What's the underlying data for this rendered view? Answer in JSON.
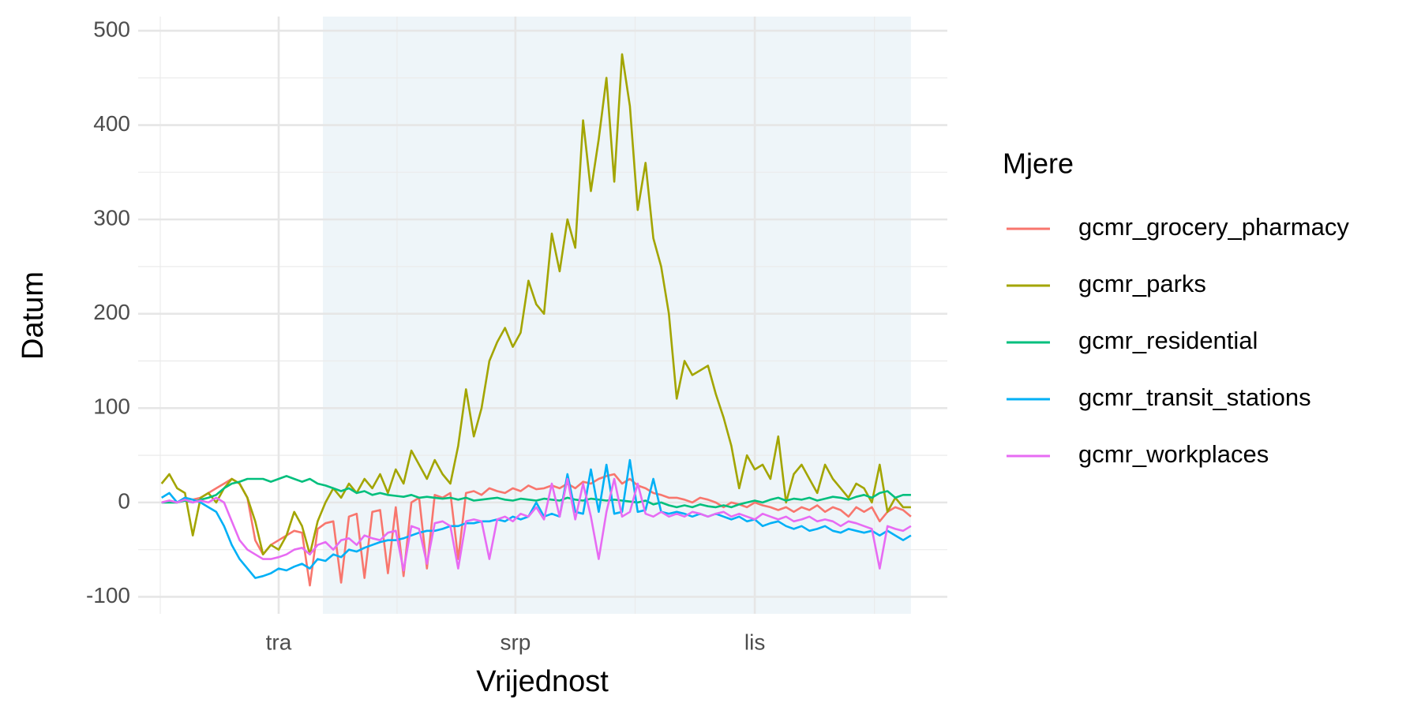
{
  "chart_data": {
    "type": "line",
    "x_label": "Vrijednost",
    "y_label": "Datum",
    "legend_title": "Mjere",
    "legend_position": "right",
    "grid": true,
    "shaded_range": [
      17,
      243
    ],
    "x": [
      -45,
      -42,
      -39,
      -36,
      -33,
      -30,
      -27,
      -24,
      -21,
      -18,
      -15,
      -12,
      -9,
      -6,
      -3,
      0,
      3,
      6,
      9,
      12,
      15,
      18,
      21,
      24,
      27,
      30,
      33,
      36,
      39,
      42,
      45,
      48,
      51,
      54,
      57,
      60,
      63,
      66,
      69,
      72,
      75,
      78,
      81,
      84,
      87,
      90,
      93,
      96,
      99,
      102,
      105,
      108,
      111,
      114,
      117,
      120,
      123,
      126,
      129,
      132,
      135,
      138,
      141,
      144,
      147,
      150,
      153,
      156,
      159,
      162,
      165,
      168,
      171,
      174,
      177,
      180,
      183,
      186,
      189,
      192,
      195,
      198,
      201,
      204,
      207,
      210,
      213,
      216,
      219,
      222,
      225,
      228,
      231,
      234,
      237,
      240,
      243
    ],
    "xlim": [
      -54,
      257
    ],
    "xticks": [
      {
        "value": 0,
        "label": "tra"
      },
      {
        "value": 91,
        "label": "srp"
      },
      {
        "value": 183,
        "label": "lis"
      }
    ],
    "ylim": [
      -118,
      515
    ],
    "yticks": [
      -100,
      0,
      100,
      200,
      300,
      400,
      500
    ],
    "series": [
      {
        "name": "gcmr_grocery_pharmacy",
        "color": "#F8766D",
        "values": [
          0,
          2,
          0,
          5,
          3,
          5,
          10,
          15,
          20,
          25,
          20,
          5,
          -40,
          -55,
          -45,
          -40,
          -35,
          -30,
          -32,
          -88,
          -28,
          -22,
          -20,
          -85,
          -15,
          -12,
          -80,
          -10,
          -8,
          -75,
          -5,
          -78,
          0,
          5,
          -70,
          8,
          5,
          10,
          -60,
          10,
          12,
          8,
          15,
          12,
          10,
          15,
          12,
          18,
          14,
          15,
          18,
          15,
          20,
          15,
          22,
          20,
          25,
          28,
          30,
          20,
          25,
          18,
          15,
          10,
          8,
          5,
          5,
          3,
          0,
          5,
          3,
          0,
          -5,
          0,
          -2,
          -5,
          0,
          -3,
          -5,
          -8,
          -5,
          -10,
          -5,
          -8,
          -3,
          -10,
          -5,
          -8,
          -15,
          -5,
          -10,
          -5,
          -20,
          -10,
          -5,
          -8,
          -15
        ]
      },
      {
        "name": "gcmr_parks",
        "color": "#A3A500",
        "values": [
          20,
          30,
          15,
          10,
          -35,
          5,
          10,
          0,
          15,
          25,
          20,
          5,
          -20,
          -55,
          -45,
          -50,
          -35,
          -10,
          -25,
          -55,
          -20,
          0,
          15,
          5,
          20,
          10,
          25,
          15,
          30,
          10,
          35,
          20,
          55,
          40,
          25,
          45,
          30,
          20,
          60,
          120,
          70,
          100,
          150,
          170,
          185,
          165,
          180,
          235,
          210,
          200,
          285,
          245,
          300,
          270,
          405,
          330,
          385,
          450,
          340,
          475,
          420,
          310,
          360,
          280,
          250,
          200,
          110,
          150,
          135,
          140,
          145,
          115,
          90,
          60,
          15,
          50,
          35,
          40,
          25,
          70,
          0,
          30,
          40,
          25,
          10,
          40,
          25,
          15,
          5,
          20,
          15,
          0,
          40,
          -10,
          5,
          -5,
          -5
        ]
      },
      {
        "name": "gcmr_residential",
        "color": "#00BF7D",
        "values": [
          0,
          0,
          0,
          2,
          0,
          3,
          5,
          8,
          15,
          20,
          22,
          25,
          25,
          25,
          22,
          25,
          28,
          25,
          22,
          25,
          20,
          18,
          15,
          12,
          15,
          10,
          12,
          8,
          10,
          8,
          7,
          6,
          8,
          5,
          6,
          5,
          4,
          5,
          3,
          5,
          2,
          3,
          4,
          5,
          3,
          2,
          4,
          3,
          2,
          4,
          3,
          2,
          5,
          3,
          2,
          4,
          3,
          2,
          3,
          2,
          1,
          0,
          2,
          -2,
          0,
          -3,
          -5,
          -3,
          -5,
          -2,
          -4,
          -5,
          -3,
          -5,
          -2,
          0,
          2,
          0,
          3,
          5,
          2,
          4,
          3,
          5,
          2,
          4,
          6,
          5,
          3,
          6,
          8,
          5,
          10,
          12,
          5,
          8,
          8
        ]
      },
      {
        "name": "gcmr_transit_stations",
        "color": "#00B0F6",
        "values": [
          5,
          10,
          0,
          5,
          3,
          0,
          -5,
          -10,
          -25,
          -45,
          -60,
          -70,
          -80,
          -78,
          -75,
          -70,
          -72,
          -68,
          -65,
          -70,
          -60,
          -62,
          -55,
          -58,
          -50,
          -52,
          -48,
          -45,
          -42,
          -40,
          -40,
          -38,
          -35,
          -32,
          -30,
          -30,
          -28,
          -25,
          -25,
          -22,
          -22,
          -20,
          -20,
          -18,
          -20,
          -15,
          -18,
          -15,
          0,
          -15,
          -12,
          -15,
          30,
          -10,
          -12,
          35,
          -10,
          40,
          -12,
          -10,
          45,
          -10,
          -8,
          25,
          -10,
          -12,
          -10,
          -12,
          -15,
          -12,
          -15,
          -12,
          -15,
          -18,
          -15,
          -20,
          -18,
          -25,
          -22,
          -20,
          -25,
          -28,
          -25,
          -30,
          -28,
          -25,
          -30,
          -32,
          -28,
          -30,
          -32,
          -30,
          -35,
          -30,
          -35,
          -40,
          -35
        ]
      },
      {
        "name": "gcmr_workplaces",
        "color": "#E76BF3",
        "values": [
          0,
          2,
          0,
          3,
          0,
          2,
          0,
          5,
          0,
          -20,
          -40,
          -50,
          -55,
          -60,
          -60,
          -58,
          -55,
          -50,
          -48,
          -55,
          -45,
          -42,
          -50,
          -40,
          -38,
          -45,
          -35,
          -38,
          -40,
          -32,
          -30,
          -72,
          -25,
          -28,
          -65,
          -22,
          -20,
          -25,
          -70,
          -20,
          -18,
          -20,
          -60,
          -18,
          -15,
          -20,
          -12,
          -15,
          -5,
          -18,
          20,
          -15,
          25,
          -18,
          20,
          -15,
          -60,
          -10,
          25,
          -15,
          -10,
          20,
          -12,
          -15,
          -10,
          -15,
          -12,
          -15,
          -10,
          -12,
          -15,
          -12,
          -10,
          -15,
          -12,
          -15,
          -18,
          -12,
          -15,
          -18,
          -15,
          -20,
          -18,
          -15,
          -20,
          -18,
          -20,
          -25,
          -20,
          -22,
          -25,
          -28,
          -70,
          -25,
          -28,
          -30,
          -25
        ]
      }
    ]
  }
}
